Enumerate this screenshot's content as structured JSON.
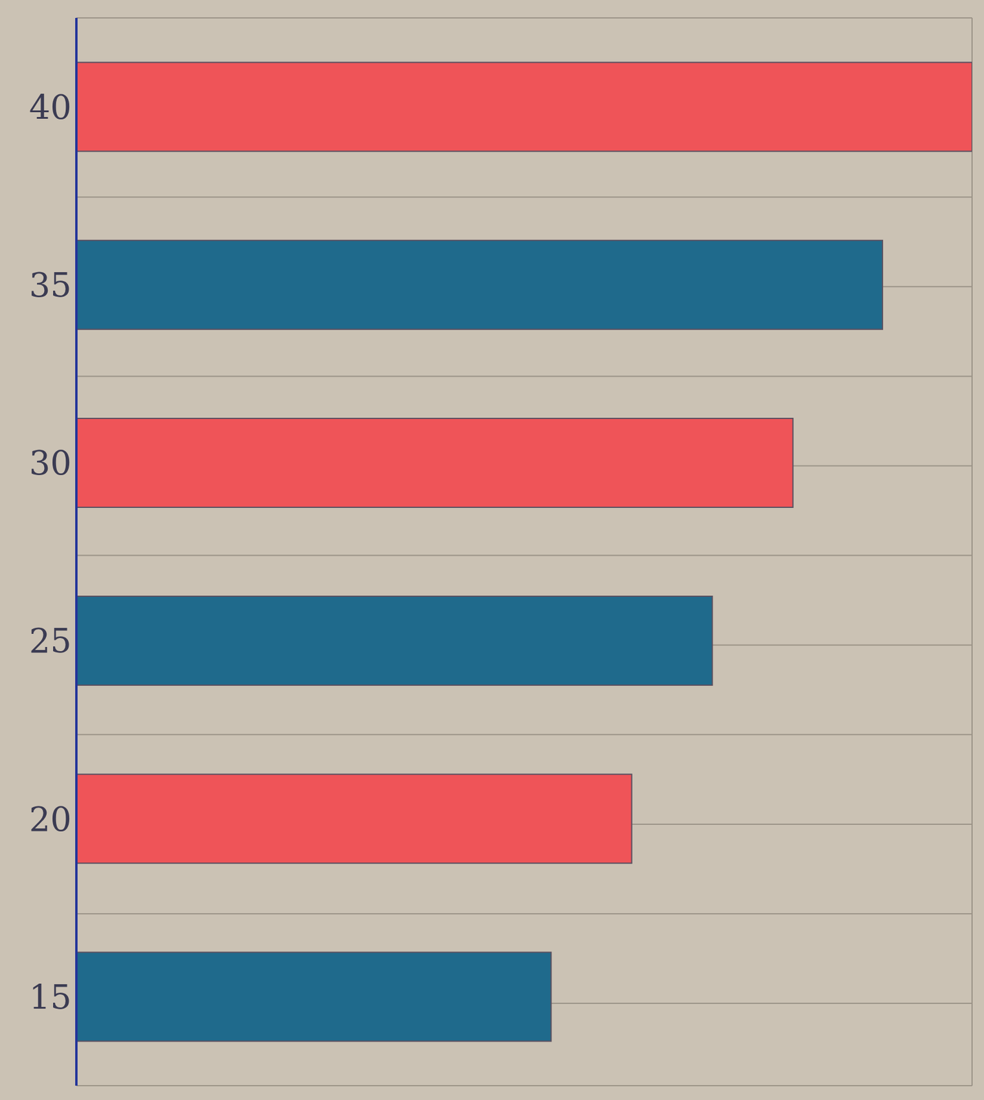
{
  "chart_data": {
    "type": "bar",
    "orientation": "horizontal",
    "categories": [
      "40",
      "35",
      "30",
      "25",
      "20",
      "15"
    ],
    "values": [
      10,
      9,
      8,
      7.1,
      6.2,
      5.3
    ],
    "colors": [
      "#ef5458",
      "#1f6a8c",
      "#ef5458",
      "#1f6a8c",
      "#ef5458",
      "#1f6a8c"
    ],
    "xlim": [
      0,
      10
    ],
    "xticks": [
      0,
      1,
      2,
      3,
      4,
      5,
      6,
      7,
      8,
      9,
      10
    ],
    "grid": true,
    "tick_labels": "y"
  }
}
